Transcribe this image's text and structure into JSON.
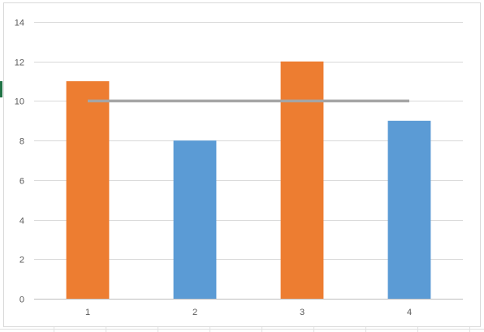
{
  "chart_data": {
    "type": "bar",
    "categories": [
      "1",
      "2",
      "3",
      "4"
    ],
    "values": [
      11,
      8,
      12,
      9
    ],
    "bar_colors": [
      "#ED7D31",
      "#5B9BD5",
      "#ED7D31",
      "#5B9BD5"
    ],
    "reference_line": {
      "value": 10,
      "color": "#A5A5A5"
    },
    "yticks": [
      "0",
      "2",
      "4",
      "6",
      "8",
      "10",
      "12",
      "14"
    ],
    "ylim": [
      0,
      14
    ],
    "grid": true,
    "title": "",
    "xlabel": "",
    "ylabel": ""
  },
  "colors": {
    "gridline": "#D9D9D9",
    "axis": "#BFBFBF",
    "sheet_grid": "#E1E1E1",
    "selection": "#217346"
  }
}
